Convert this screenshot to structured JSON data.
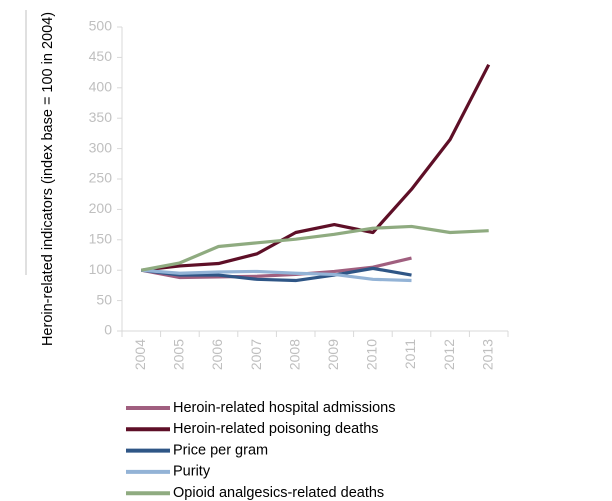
{
  "chart_data": {
    "type": "line",
    "y_label": "Heroin-related indicators (index base = 100 in 2004)",
    "categories": [
      "2004",
      "2005",
      "2006",
      "2007",
      "2008",
      "2009",
      "2010",
      "2011",
      "2012",
      "2013"
    ],
    "series": [
      {
        "name": "Heroin-related hospital admissions",
        "color": "#a05f7f",
        "values": [
          100,
          88,
          89,
          90,
          93,
          98,
          105,
          120,
          null,
          null
        ]
      },
      {
        "name": "Heroin-related poisoning deaths",
        "color": "#5e0f27",
        "values": [
          100,
          107,
          111,
          127,
          162,
          175,
          162,
          233,
          315,
          438
        ]
      },
      {
        "name": "Price per gram",
        "color": "#2f5686",
        "values": [
          100,
          92,
          92,
          85,
          83,
          92,
          103,
          92,
          null,
          null
        ]
      },
      {
        "name": "Purity",
        "color": "#93b3d6",
        "values": [
          100,
          95,
          97,
          98,
          95,
          93,
          85,
          83,
          null,
          null
        ]
      },
      {
        "name": "Opioid analgesics-related deaths",
        "color": "#8fab80",
        "values": [
          100,
          112,
          139,
          145,
          151,
          159,
          169,
          172,
          162,
          165
        ]
      }
    ],
    "ylim": [
      0,
      500
    ],
    "yticks": [
      0,
      50,
      100,
      150,
      200,
      250,
      300,
      350,
      400,
      450,
      500
    ]
  }
}
